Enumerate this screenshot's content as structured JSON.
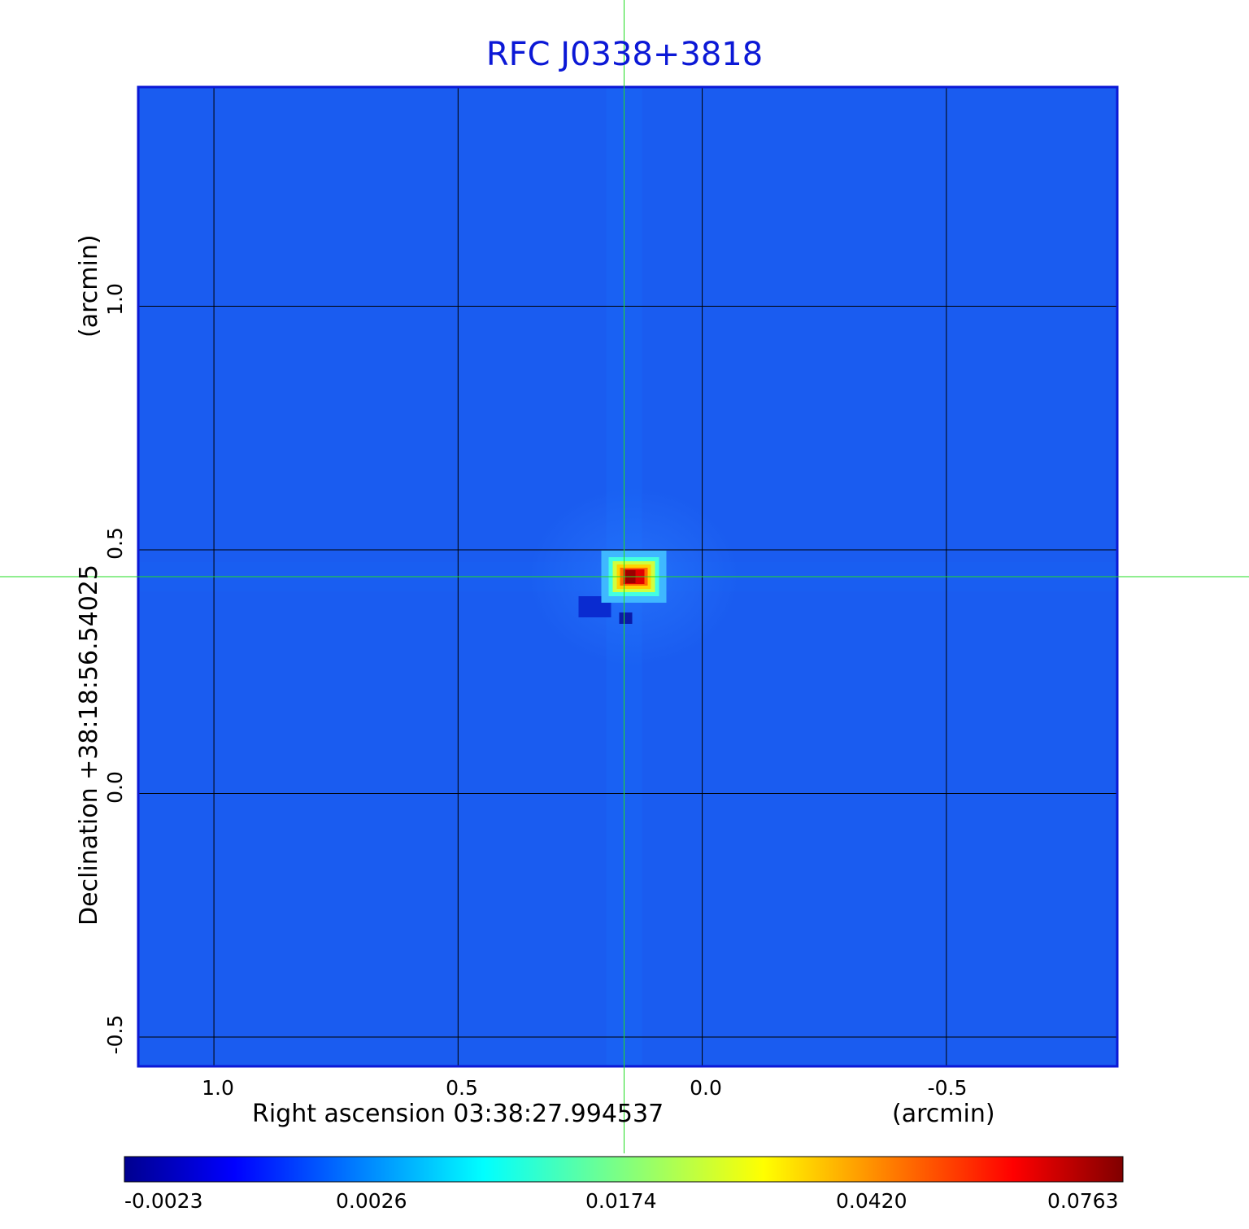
{
  "chart_data": {
    "type": "heatmap",
    "title": "RFC J0338+3818",
    "xlabel": "Right ascension  03:38:27.994537",
    "xunit": "(arcmin)",
    "ylabel": "Declination  +38:18:56.54025",
    "yunit": "(arcmin)",
    "x_ticks": [
      "1.0",
      "0.5",
      "0.0",
      "-0.5"
    ],
    "y_ticks": [
      "1.0",
      "0.5",
      "0.0",
      "-0.5"
    ],
    "xlim": [
      1.155,
      -0.85
    ],
    "ylim": [
      -0.56,
      1.45
    ],
    "grid": true,
    "crosshair": {
      "x": 0.16,
      "y": 0.445
    },
    "source_peak": {
      "x": 0.14,
      "y": 0.445,
      "value": 0.0763
    },
    "colorbar": {
      "colormap": "jet",
      "ticks": [
        "-0.0023",
        "0.0026",
        "0.0174",
        "0.0420",
        "0.0763"
      ],
      "range": [
        -0.0023,
        0.0763
      ]
    },
    "colors": {
      "title": "#0b18d6",
      "frame": "#0b18d6",
      "crosshair": "#22dd22",
      "background_field": "#1a5cf0"
    }
  }
}
